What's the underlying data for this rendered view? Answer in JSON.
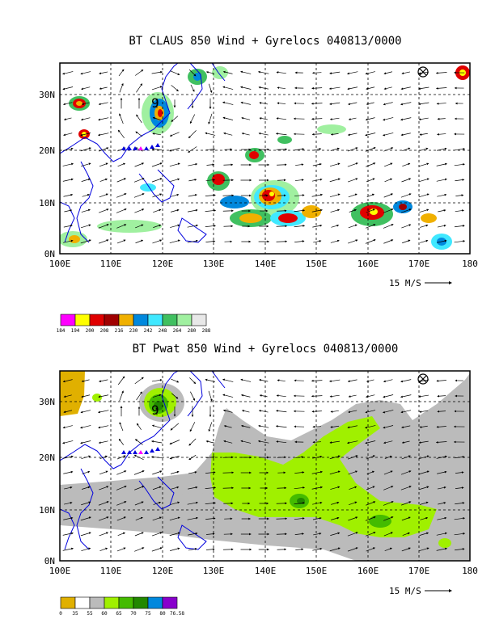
{
  "top_panel": {
    "title": "BT CLAUS 850 Wind + Gyrelocs 040813/0000",
    "x_ticks": [
      "100E",
      "110E",
      "120E",
      "130E",
      "140E",
      "150E",
      "160E",
      "170E",
      "180"
    ],
    "y_ticks": [
      "0N",
      "10N",
      "20N",
      "30N"
    ],
    "vector_ref_label": "15 M/S",
    "storm_marker": "9",
    "colorbar": {
      "labels": [
        "184",
        "194",
        "200",
        "208",
        "216",
        "230",
        "242",
        "248",
        "264",
        "280",
        "288"
      ],
      "colors": [
        "#ff00ff",
        "#ffff00",
        "#e00000",
        "#a00000",
        "#f0b000",
        "#0088dd",
        "#40e8ff",
        "#40c060",
        "#a0f0a0",
        "#e8e8e8"
      ]
    }
  },
  "bottom_panel": {
    "title": "BT Pwat 850 Wind + Gyrelocs 040813/0000",
    "x_ticks": [
      "100E",
      "110E",
      "120E",
      "130E",
      "140E",
      "150E",
      "160E",
      "170E",
      "180"
    ],
    "y_ticks": [
      "0N",
      "10N",
      "20N",
      "30N"
    ],
    "vector_ref_label": "15 M/S",
    "storm_marker": "9",
    "colorbar": {
      "labels": [
        "0",
        "35",
        "55",
        "60",
        "65",
        "70",
        "75",
        "80",
        "76.58"
      ],
      "colors": [
        "#e0b000",
        "#ffffff",
        "#bbbbbb",
        "#a0f000",
        "#44bb00",
        "#228800",
        "#0088dd",
        "#8800cc"
      ]
    }
  }
}
